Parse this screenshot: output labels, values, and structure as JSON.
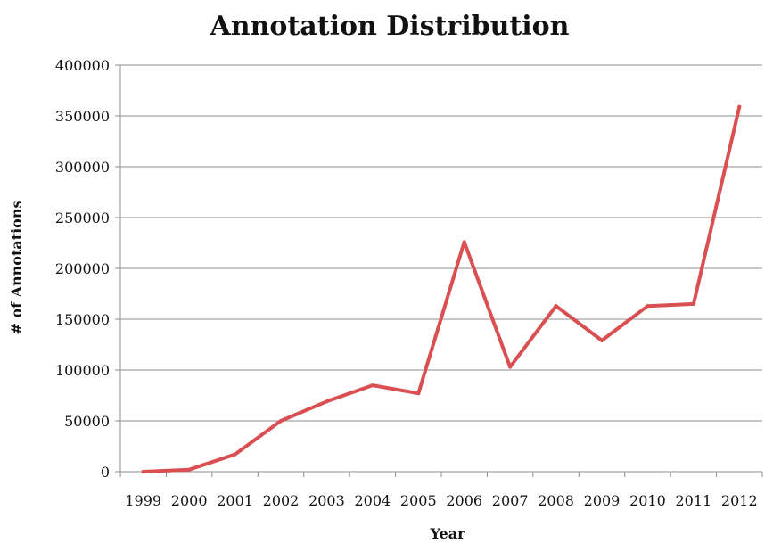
{
  "chart_data": {
    "type": "line",
    "title": "Annotation Distribution",
    "xlabel": "Year",
    "ylabel": "# of Annotations",
    "categories": [
      "1999",
      "2000",
      "2001",
      "2002",
      "2003",
      "2004",
      "2005",
      "2006",
      "2007",
      "2008",
      "2009",
      "2010",
      "2011",
      "2012"
    ],
    "series": [
      {
        "values": [
          0,
          2000,
          17000,
          50000,
          69000,
          85000,
          77000,
          226000,
          103000,
          163000,
          129000,
          163000,
          165000,
          359000
        ],
        "color": "#d94f52"
      }
    ],
    "ylim": [
      0,
      400000
    ],
    "yticks": [
      "0",
      "50000",
      "100000",
      "150000",
      "200000",
      "250000",
      "300000",
      "350000",
      "400000"
    ],
    "grid": true,
    "legend": "none"
  }
}
